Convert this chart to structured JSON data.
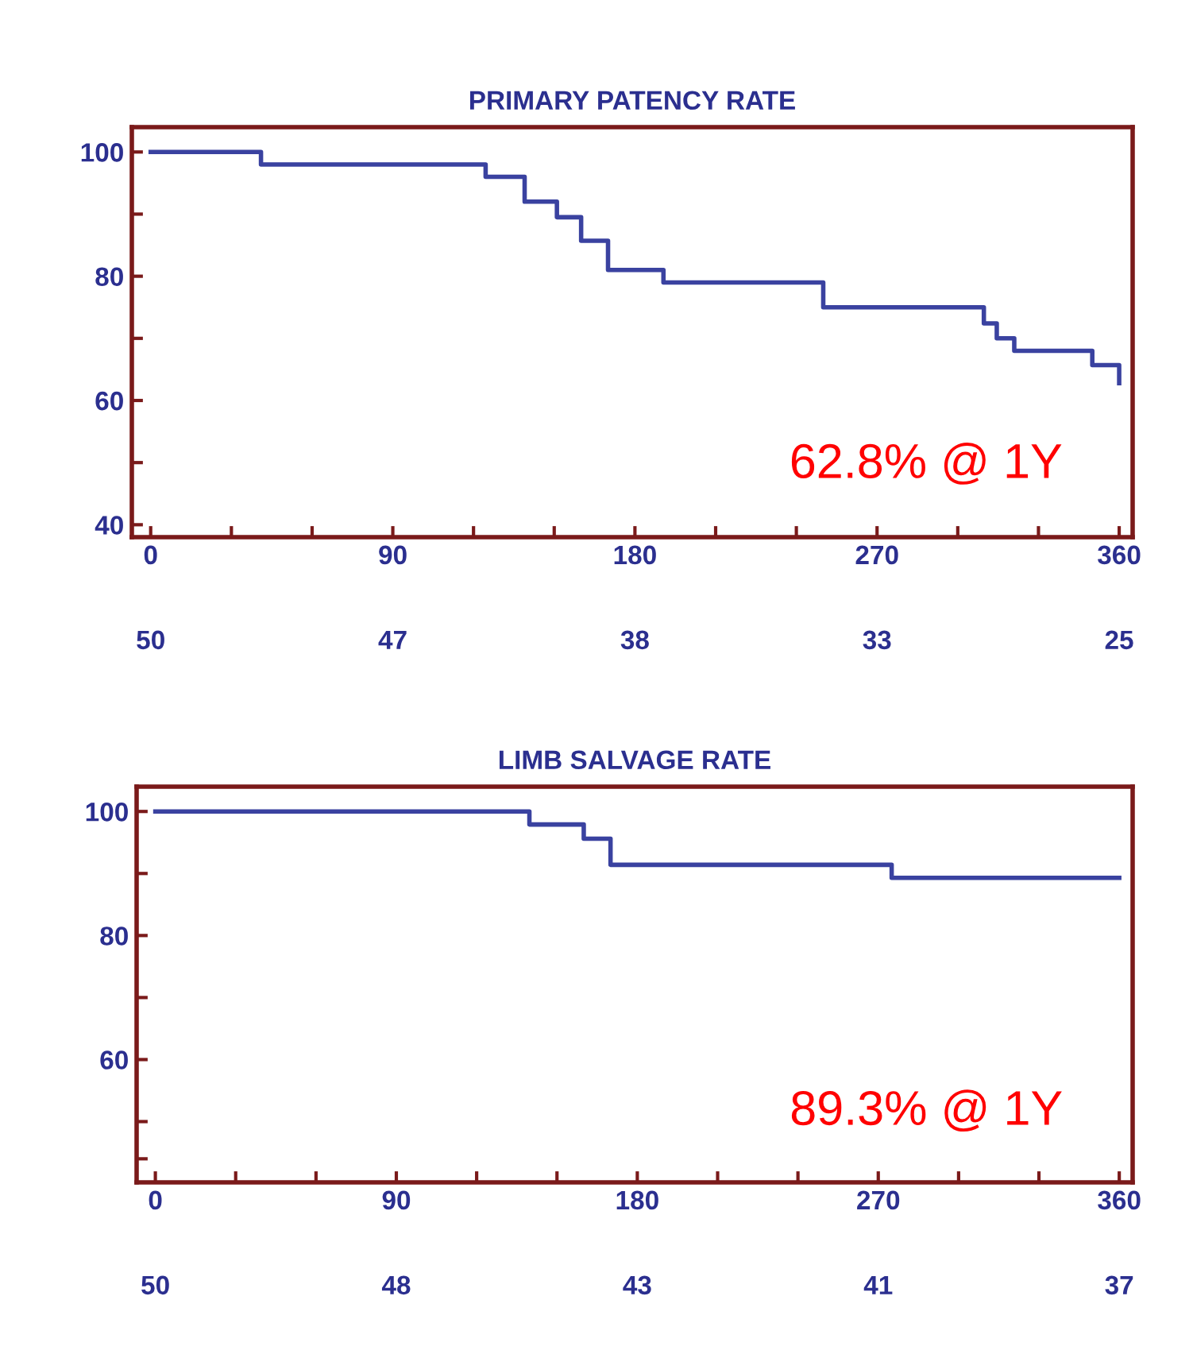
{
  "chart_data": [
    {
      "type": "step",
      "title": "PRIMARY PATENCY RATE",
      "xlim": [
        -7,
        365
      ],
      "ylim": [
        38,
        104
      ],
      "xticks": [
        0,
        {
          "value": 30,
          "label": null
        },
        {
          "value": 60,
          "label": null
        },
        90,
        {
          "value": 120,
          "label": null
        },
        {
          "value": 150,
          "label": null
        },
        180,
        {
          "value": 210,
          "label": null
        },
        {
          "value": 240,
          "label": null
        },
        270,
        {
          "value": 300,
          "label": null
        },
        {
          "value": 330,
          "label": null
        },
        360
      ],
      "yticks": [
        40,
        {
          "value": 50,
          "label": null
        },
        60,
        {
          "value": 70,
          "label": null
        },
        80,
        {
          "value": 90,
          "label": null
        },
        100
      ],
      "series": [
        {
          "color": "#3a42a0",
          "x": [
            0,
            41,
            124.5,
            139,
            151,
            160,
            170,
            190.6,
            250,
            309.7,
            314.5,
            321,
            350,
            360
          ],
          "values": [
            100,
            98,
            96,
            92,
            89.5,
            85.7,
            81,
            79,
            75,
            72.4,
            70,
            68,
            65.7,
            62.8
          ]
        }
      ],
      "annotations": [
        "62.8% @ 1Y",
        "50",
        "47",
        "38",
        "33",
        "25"
      ],
      "grid": false,
      "legend": false,
      "marker": "none",
      "line_style": "solid"
    },
    {
      "type": "step",
      "title": "LIMB SALVAGE RATE",
      "xlim": [
        -7,
        365
      ],
      "ylim": [
        40.2,
        104
      ],
      "xticks": [
        0,
        {
          "value": 30,
          "label": null
        },
        {
          "value": 60,
          "label": null
        },
        90,
        {
          "value": 120,
          "label": null
        },
        {
          "value": 150,
          "label": null
        },
        180,
        {
          "value": 210,
          "label": null
        },
        {
          "value": 240,
          "label": null
        },
        270,
        {
          "value": 300,
          "label": null
        },
        {
          "value": 330,
          "label": null
        },
        360
      ],
      "yticks": [
        {
          "value": 44,
          "label": null
        },
        {
          "value": 50,
          "label": null
        },
        60,
        {
          "value": 70,
          "label": null
        },
        80,
        {
          "value": 90,
          "label": null
        },
        100
      ],
      "series": [
        {
          "color": "#3a42a0",
          "x": [
            0,
            139.7,
            160,
            170,
            275,
            360
          ],
          "values": [
            100,
            97.9,
            95.6,
            91.4,
            89.3,
            89.3
          ]
        }
      ],
      "annotations": [
        "89.3% @ 1Y",
        "50",
        "48",
        "43",
        "41",
        "37"
      ],
      "grid": false,
      "legend": false,
      "marker": "none",
      "line_style": "solid"
    }
  ]
}
